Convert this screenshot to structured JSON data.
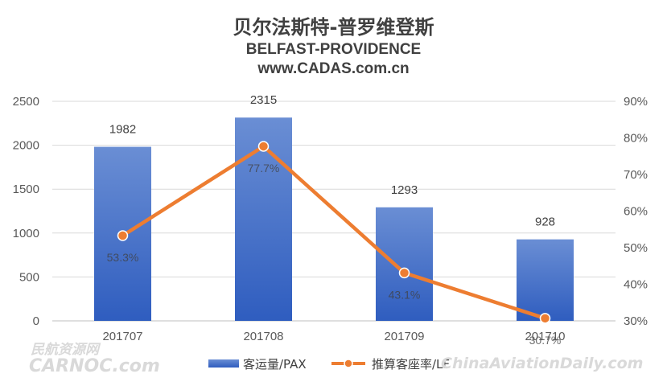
{
  "chart_data": {
    "type": "bar",
    "title": "贝尔法斯特-普罗维登斯",
    "subtitle": "BELFAST-PROVIDENCE",
    "source": "www.CADAS.com.cn",
    "categories": [
      "201707",
      "201708",
      "201709",
      "201710"
    ],
    "series": [
      {
        "name": "客运量/PAX",
        "type": "bar",
        "axis": "left",
        "values": [
          1982,
          2315,
          1293,
          928
        ],
        "labels": [
          "1982",
          "2315",
          "1293",
          "928"
        ],
        "color": "#4472c4"
      },
      {
        "name": "推算客座率/LF",
        "type": "line",
        "axis": "right",
        "values": [
          53.3,
          77.7,
          43.1,
          30.7
        ],
        "labels": [
          "53.3%",
          "77.7%",
          "43.1%",
          "30.7%"
        ],
        "color": "#ed7d31"
      }
    ],
    "y_left": {
      "min": 0,
      "max": 2500,
      "ticks": [
        0,
        500,
        1000,
        1500,
        2000,
        2500
      ],
      "tick_labels": [
        "0",
        "500",
        "1000",
        "1500",
        "2000",
        "2500"
      ]
    },
    "y_right": {
      "min": 30,
      "max": 90,
      "ticks": [
        30,
        40,
        50,
        60,
        70,
        80,
        90
      ],
      "tick_labels": [
        "30%",
        "40%",
        "50%",
        "60%",
        "70%",
        "80%",
        "90%"
      ]
    },
    "grid": true,
    "legend_position": "bottom"
  },
  "watermarks": {
    "left_cn": "民航资源网",
    "left_en": "CARNOC.com",
    "right": "ChinaAviationDaily.com"
  }
}
